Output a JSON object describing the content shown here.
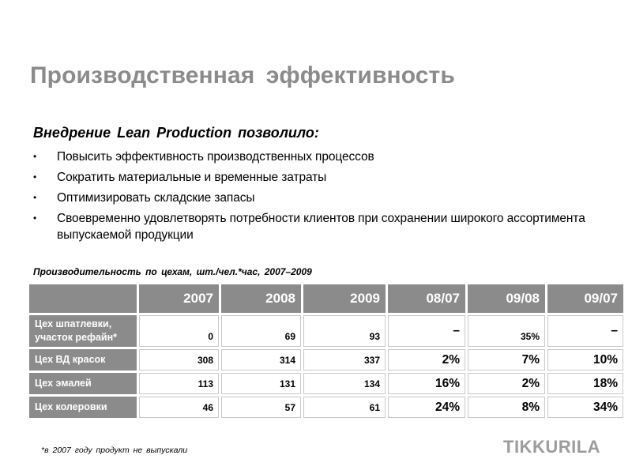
{
  "title": "Производственная эффективность",
  "intro": "Внедрение Lean Production позволило:",
  "bullets": [
    "Повысить эффективность производственных процессов",
    "Сократить материальные и временные затраты",
    "Оптимизировать складские запасы",
    "Своевременно удовлетворять потребности клиентов при сохранении широкого ассортимента выпускаемой продукции"
  ],
  "bullet_glyph": "•",
  "table_title": "Производительность по цехам, шт./чел.*час, 2007–2009",
  "table": {
    "columns": [
      "",
      "2007",
      "2008",
      "2009",
      "08/07",
      "09/08",
      "09/07"
    ],
    "rows": [
      {
        "label": "Цех шпатлевки, участок рефайн*",
        "v2007": "0",
        "v2008": "69",
        "v2009": "93",
        "r0807": "–",
        "r0908": "35%",
        "r0907": "–"
      },
      {
        "label": "Цех ВД красок",
        "v2007": "308",
        "v2008": "314",
        "v2009": "337",
        "r0807": "2%",
        "r0908": "7%",
        "r0907": "10%"
      },
      {
        "label": "Цех эмалей",
        "v2007": "113",
        "v2008": "131",
        "v2009": "134",
        "r0807": "16%",
        "r0908": "2%",
        "r0907": "18%"
      },
      {
        "label": "Цех колеровки",
        "v2007": "46",
        "v2008": "57",
        "v2009": "61",
        "r0807": "24%",
        "r0908": "8%",
        "r0907": "34%"
      }
    ]
  },
  "footnote": "*в 2007 году продукт не выпускали",
  "logo": "TIKKURILA",
  "colors": {
    "title_gray": "#8b8b8b",
    "header_gray": "#8b8b8b",
    "logo_gray": "#9c9c9c"
  }
}
